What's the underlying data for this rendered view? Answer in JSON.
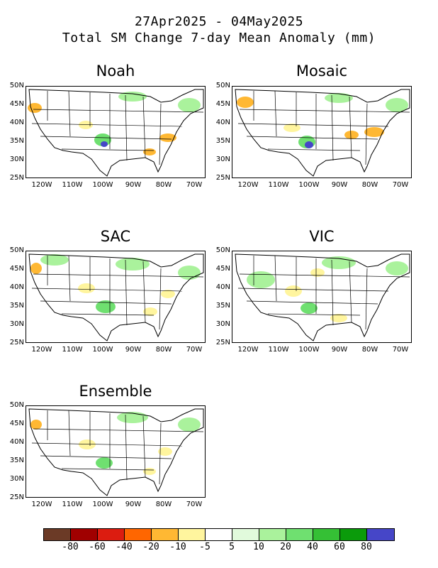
{
  "header": {
    "line1": "27Apr2025 - 04May2025",
    "line2": "Total SM Change 7-day Mean Anomaly (mm)"
  },
  "panels": [
    {
      "title": "Noah"
    },
    {
      "title": "Mosaic"
    },
    {
      "title": "SAC"
    },
    {
      "title": "VIC"
    },
    {
      "title": "Ensemble"
    }
  ],
  "axes": {
    "lat_labels": [
      "50N",
      "45N",
      "40N",
      "35N",
      "30N",
      "25N"
    ],
    "lon_labels": [
      "120W",
      "110W",
      "100W",
      "90W",
      "80W",
      "70W"
    ]
  },
  "legend": {
    "colors": [
      "#6b3a26",
      "#a00000",
      "#dc1c10",
      "#ff6600",
      "#ffb833",
      "#fff59e",
      "#ffffff",
      "#e1fadc",
      "#aaf29c",
      "#6fe070",
      "#35c035",
      "#0b9b0b",
      "#4646c8"
    ],
    "labels": [
      "-80",
      "-60",
      "-40",
      "-20",
      "-10",
      "-5",
      "5",
      "10",
      "20",
      "40",
      "60",
      "80"
    ]
  }
}
